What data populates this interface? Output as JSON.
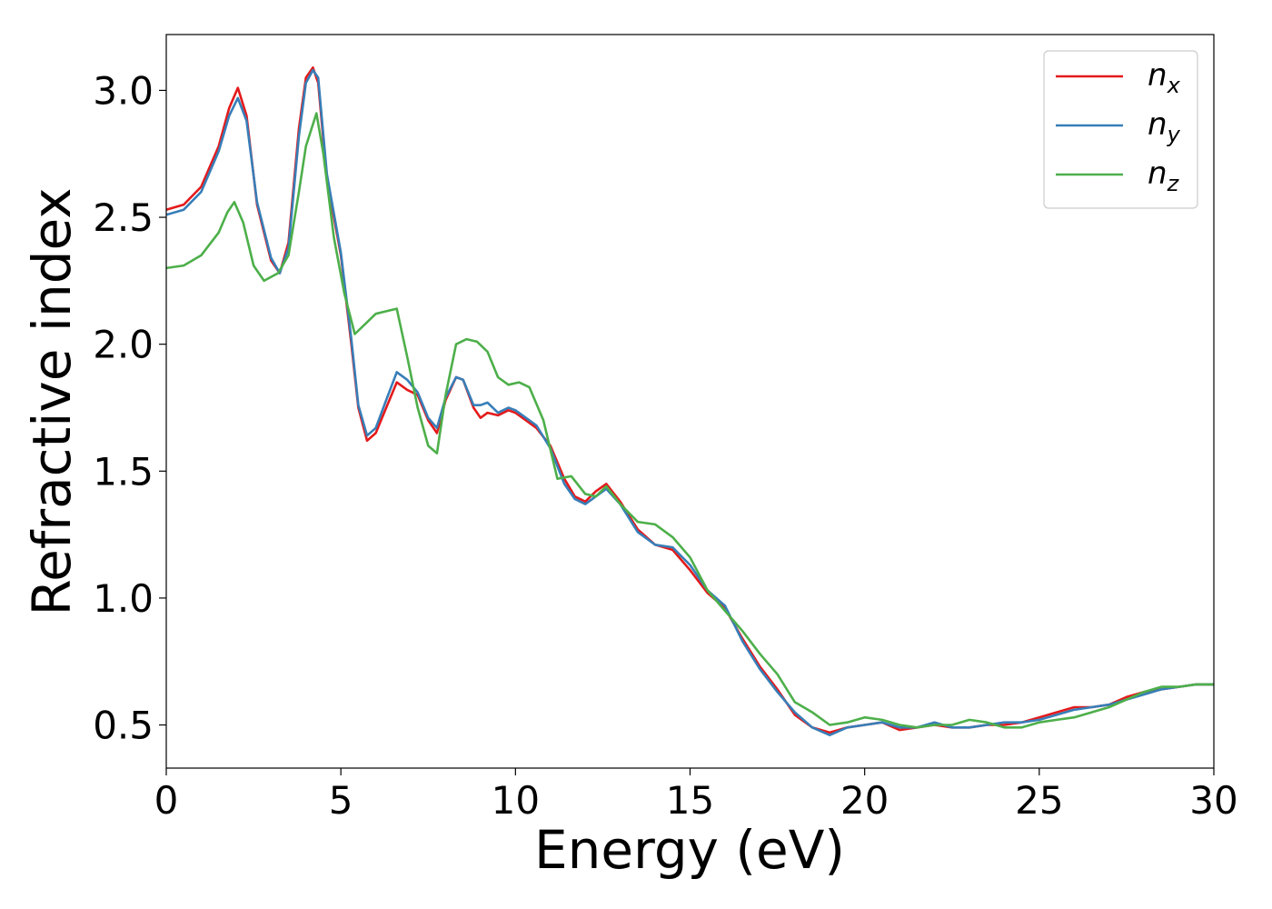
{
  "chart_data": {
    "type": "line",
    "xlabel": "Energy (eV)",
    "ylabel": "Refractive index",
    "xlim": [
      0,
      30
    ],
    "ylim": [
      0.33,
      3.22
    ],
    "xticks": [
      "0",
      "5",
      "10",
      "15",
      "20",
      "25",
      "30"
    ],
    "xtick_values": [
      0,
      5,
      10,
      15,
      20,
      25,
      30
    ],
    "yticks": [
      "0.5",
      "1.0",
      "1.5",
      "2.0",
      "2.5",
      "3.0"
    ],
    "ytick_values": [
      0.5,
      1.0,
      1.5,
      2.0,
      2.5,
      3.0
    ],
    "grid": false,
    "legend_position": "top-right",
    "series": [
      {
        "name": "n_x",
        "label_base": "n",
        "label_sub": "x",
        "color": "#e41a1c",
        "x": [
          0,
          0.5,
          1.0,
          1.5,
          1.8,
          2.05,
          2.3,
          2.6,
          3.0,
          3.25,
          3.5,
          3.8,
          4.0,
          4.2,
          4.35,
          4.6,
          5.0,
          5.3,
          5.5,
          5.75,
          6.0,
          6.3,
          6.6,
          6.9,
          7.2,
          7.5,
          7.75,
          8.0,
          8.3,
          8.5,
          8.8,
          9.0,
          9.2,
          9.5,
          9.8,
          10.0,
          10.3,
          10.6,
          11.0,
          11.4,
          11.7,
          12.0,
          12.3,
          12.6,
          13.0,
          13.5,
          14.0,
          14.5,
          15.0,
          15.5,
          16.0,
          16.5,
          17.0,
          17.5,
          18.0,
          18.5,
          19.0,
          19.5,
          20.0,
          20.5,
          21.0,
          21.5,
          22.0,
          22.5,
          23.0,
          23.5,
          24.0,
          24.5,
          25.0,
          25.5,
          26.0,
          26.5,
          27.0,
          27.5,
          28.0,
          28.5,
          29.0,
          29.5,
          30.0
        ],
        "y": [
          2.53,
          2.55,
          2.62,
          2.78,
          2.93,
          3.01,
          2.9,
          2.55,
          2.33,
          2.28,
          2.4,
          2.85,
          3.05,
          3.09,
          3.03,
          2.65,
          2.35,
          2.0,
          1.75,
          1.62,
          1.65,
          1.75,
          1.85,
          1.82,
          1.8,
          1.7,
          1.65,
          1.78,
          1.87,
          1.86,
          1.75,
          1.71,
          1.73,
          1.72,
          1.74,
          1.73,
          1.7,
          1.67,
          1.6,
          1.47,
          1.4,
          1.38,
          1.42,
          1.45,
          1.38,
          1.27,
          1.21,
          1.19,
          1.11,
          1.02,
          0.96,
          0.84,
          0.73,
          0.64,
          0.54,
          0.49,
          0.47,
          0.49,
          0.5,
          0.51,
          0.48,
          0.49,
          0.5,
          0.49,
          0.49,
          0.5,
          0.5,
          0.51,
          0.53,
          0.55,
          0.57,
          0.57,
          0.58,
          0.61,
          0.63,
          0.64,
          0.65,
          0.66,
          0.66
        ]
      },
      {
        "name": "n_y",
        "label_base": "n",
        "label_sub": "y",
        "color": "#377eb8",
        "x": [
          0,
          0.5,
          1.0,
          1.5,
          1.8,
          2.05,
          2.3,
          2.6,
          3.0,
          3.25,
          3.5,
          3.8,
          4.0,
          4.2,
          4.35,
          4.6,
          5.0,
          5.3,
          5.5,
          5.75,
          6.0,
          6.3,
          6.6,
          6.9,
          7.2,
          7.5,
          7.75,
          8.0,
          8.3,
          8.5,
          8.8,
          9.0,
          9.2,
          9.5,
          9.8,
          10.0,
          10.3,
          10.6,
          11.0,
          11.4,
          11.7,
          12.0,
          12.3,
          12.6,
          13.0,
          13.5,
          14.0,
          14.5,
          15.0,
          15.5,
          16.0,
          16.5,
          17.0,
          17.5,
          18.0,
          18.5,
          19.0,
          19.5,
          20.0,
          20.5,
          21.0,
          21.5,
          22.0,
          22.5,
          23.0,
          23.5,
          24.0,
          24.5,
          25.0,
          25.5,
          26.0,
          26.5,
          27.0,
          27.5,
          28.0,
          28.5,
          29.0,
          29.5,
          30.0
        ],
        "y": [
          2.51,
          2.53,
          2.6,
          2.76,
          2.9,
          2.97,
          2.88,
          2.56,
          2.34,
          2.28,
          2.38,
          2.82,
          3.03,
          3.08,
          3.05,
          2.67,
          2.36,
          2.02,
          1.76,
          1.64,
          1.67,
          1.78,
          1.89,
          1.86,
          1.81,
          1.71,
          1.67,
          1.79,
          1.87,
          1.86,
          1.76,
          1.76,
          1.77,
          1.73,
          1.75,
          1.74,
          1.71,
          1.68,
          1.59,
          1.45,
          1.39,
          1.37,
          1.4,
          1.43,
          1.37,
          1.26,
          1.21,
          1.2,
          1.13,
          1.03,
          0.97,
          0.83,
          0.72,
          0.63,
          0.55,
          0.49,
          0.46,
          0.49,
          0.5,
          0.51,
          0.49,
          0.49,
          0.51,
          0.49,
          0.49,
          0.5,
          0.51,
          0.51,
          0.52,
          0.54,
          0.56,
          0.57,
          0.58,
          0.6,
          0.62,
          0.64,
          0.65,
          0.66,
          0.66
        ]
      },
      {
        "name": "n_z",
        "label_base": "n",
        "label_sub": "z",
        "color": "#4daf4a",
        "x": [
          0,
          0.5,
          1.0,
          1.5,
          1.75,
          1.95,
          2.2,
          2.5,
          2.8,
          3.2,
          3.5,
          3.8,
          4.0,
          4.3,
          4.5,
          4.8,
          5.1,
          5.4,
          5.7,
          6.0,
          6.3,
          6.6,
          6.9,
          7.2,
          7.5,
          7.75,
          8.0,
          8.3,
          8.6,
          8.9,
          9.2,
          9.5,
          9.8,
          10.1,
          10.4,
          10.8,
          11.2,
          11.6,
          12.0,
          12.3,
          12.6,
          13.0,
          13.5,
          14.0,
          14.5,
          15.0,
          15.5,
          16.0,
          16.5,
          17.0,
          17.5,
          18.0,
          18.5,
          19.0,
          19.5,
          20.0,
          20.5,
          21.0,
          21.5,
          22.0,
          22.5,
          23.0,
          23.5,
          24.0,
          24.5,
          25.0,
          25.5,
          26.0,
          26.5,
          27.0,
          27.5,
          28.0,
          28.5,
          29.0,
          29.5,
          30.0
        ],
        "y": [
          2.3,
          2.31,
          2.35,
          2.44,
          2.52,
          2.56,
          2.48,
          2.31,
          2.25,
          2.28,
          2.35,
          2.6,
          2.78,
          2.91,
          2.75,
          2.42,
          2.2,
          2.04,
          2.08,
          2.12,
          2.13,
          2.14,
          1.95,
          1.75,
          1.6,
          1.57,
          1.8,
          2.0,
          2.02,
          2.01,
          1.97,
          1.87,
          1.84,
          1.85,
          1.83,
          1.7,
          1.47,
          1.48,
          1.41,
          1.4,
          1.44,
          1.37,
          1.3,
          1.29,
          1.24,
          1.16,
          1.03,
          0.95,
          0.87,
          0.78,
          0.7,
          0.59,
          0.55,
          0.5,
          0.51,
          0.53,
          0.52,
          0.5,
          0.49,
          0.5,
          0.5,
          0.52,
          0.51,
          0.49,
          0.49,
          0.51,
          0.52,
          0.53,
          0.55,
          0.57,
          0.6,
          0.63,
          0.65,
          0.65,
          0.66,
          0.66
        ]
      }
    ]
  }
}
